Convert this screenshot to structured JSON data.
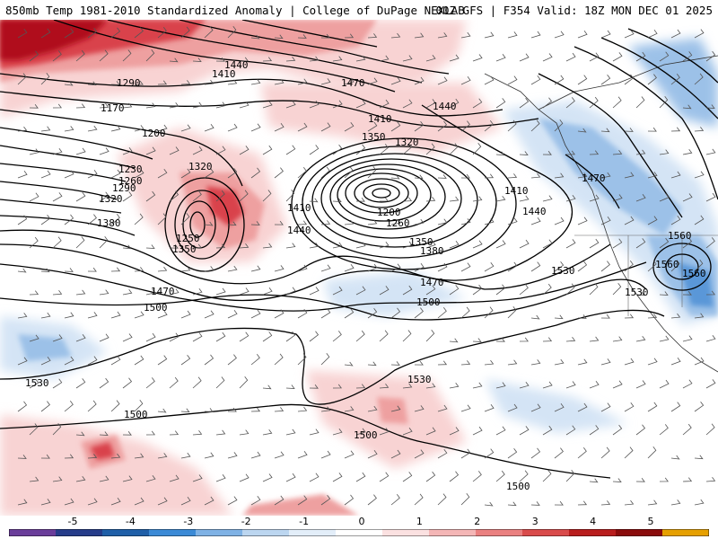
{
  "header": {
    "left_title": "850mb Temp 1981-2010 Standardized Anomaly | College of DuPage NEXLAB",
    "right_title": "00Z GFS | F354 Valid: 18Z MON DEC 01 2025"
  },
  "contour_labels": [
    "1170",
    "1200",
    "1230",
    "1260",
    "1290",
    "1290",
    "1320",
    "1320",
    "1320",
    "1350",
    "1350",
    "1380",
    "1410",
    "1410",
    "1410",
    "1410",
    "1440",
    "1440",
    "1440",
    "1440",
    "1470",
    "1470",
    "1470",
    "1470",
    "1500",
    "1500",
    "1500",
    "1500",
    "1500",
    "1530",
    "1530",
    "1530",
    "1530",
    "1560",
    "1560",
    "1560",
    "1200",
    "1260",
    "1350",
    "1380",
    "1250"
  ],
  "legend": {
    "ticks": [
      "-5",
      "-4",
      "-3",
      "-2",
      "-1",
      "0",
      "1",
      "2",
      "3",
      "4",
      "5"
    ],
    "colors": [
      "#6a3d9a",
      "#263c8a",
      "#1f5fa8",
      "#3b8ad6",
      "#7fb2e5",
      "#bcd6f0",
      "#e3eef9",
      "#ffffff",
      "#fbe1e1",
      "#f4b6b6",
      "#ea8080",
      "#d94b4b",
      "#b81d1d",
      "#8a0b0b",
      "#e6a000"
    ]
  },
  "map_colors": {
    "warm_light": "#f8d3d3",
    "warm_mid": "#eea0a0",
    "warm_strong": "#d9424b",
    "warm_extreme": "#b0101d",
    "cool_light": "#d4e4f5",
    "cool_mid": "#9cc1e8",
    "cool_strong": "#5a97d8"
  }
}
